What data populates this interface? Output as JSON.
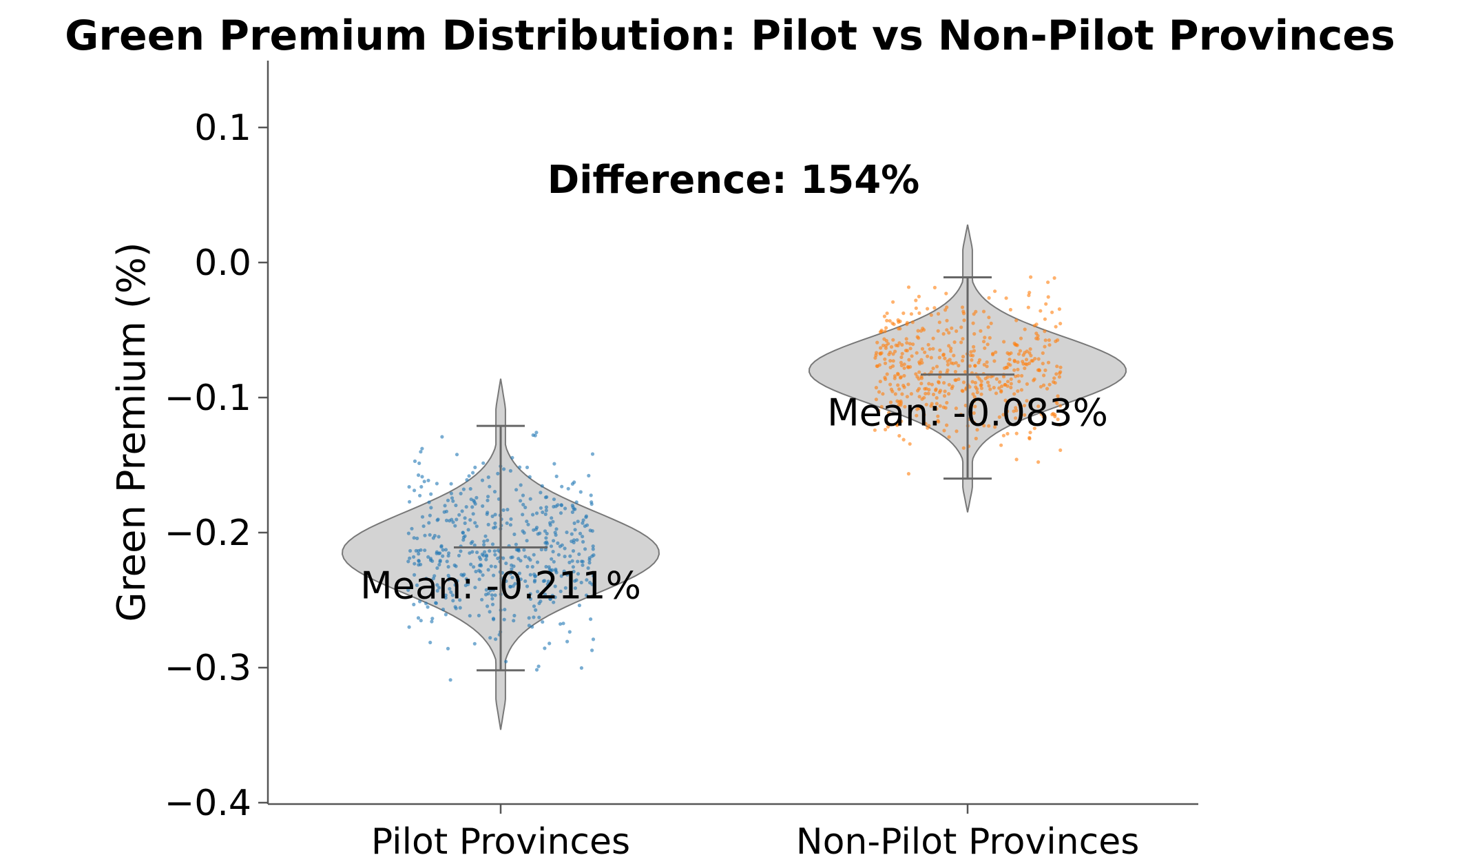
{
  "chart_data": {
    "type": "violin",
    "title": "Green Premium Distribution: Pilot vs Non-Pilot Provinces",
    "ylabel": "Green Premium (%)",
    "xlabel": "",
    "ylim": [
      -0.4,
      0.15
    ],
    "yticks": [
      0.1,
      0.0,
      -0.1,
      -0.2,
      -0.3,
      -0.4
    ],
    "ytick_labels": [
      "0.1",
      "0.0",
      "−0.1",
      "−0.2",
      "−0.3",
      "−0.4"
    ],
    "categories": [
      "Pilot Provinces",
      "Non-Pilot Provinces"
    ],
    "grid": false,
    "annotation": "Difference: 154%",
    "groups": [
      {
        "category": "Pilot Provinces",
        "mean": -0.211,
        "mean_label": "Mean: -0.211%",
        "whisker_min": -0.302,
        "whisker_max": -0.121,
        "kde_min": -0.346,
        "kde_max": -0.086,
        "peak": -0.215,
        "spread": 0.03,
        "points": 500,
        "violin_color": "#d3d3d3",
        "point_color": "#1f77b4"
      },
      {
        "category": "Non-Pilot Provinces",
        "mean": -0.083,
        "mean_label": "Mean: -0.083%",
        "whisker_min": -0.16,
        "whisker_max": -0.011,
        "kde_min": -0.185,
        "kde_max": 0.028,
        "peak": -0.08,
        "spread": 0.025,
        "points": 500,
        "violin_color": "#d3d3d3",
        "point_color": "#ff7f0e"
      }
    ]
  }
}
